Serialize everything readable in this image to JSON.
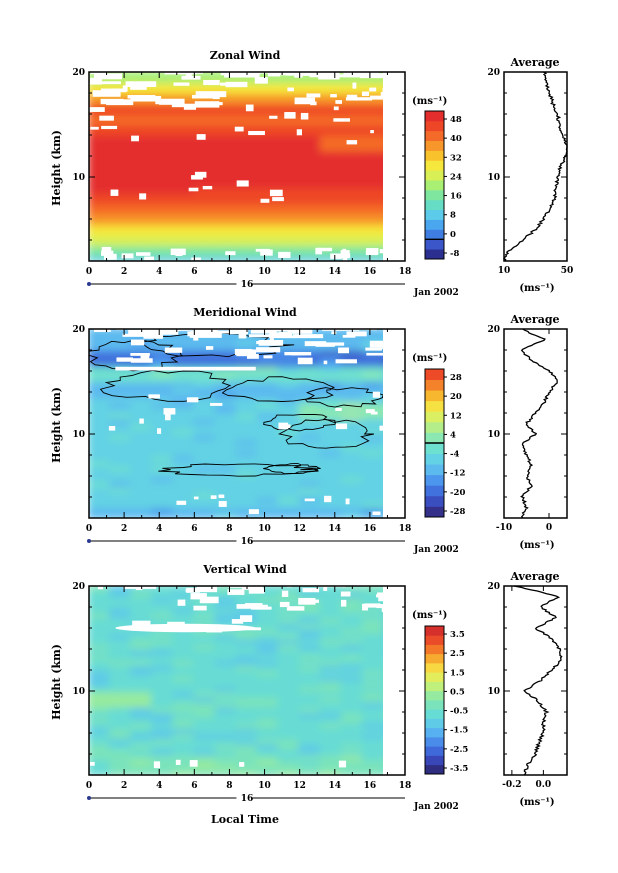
{
  "figure": {
    "date_label": "Jan 2002",
    "day_label": "16",
    "xlabel": "Local Time",
    "profile_title": "Average"
  },
  "chart_data": [
    {
      "type": "heatmap",
      "title": "Zonal Wind",
      "ylabel": "Height (km)",
      "xlim": [
        0,
        18
      ],
      "ylim": [
        2,
        20
      ],
      "xticks": [
        0,
        2,
        4,
        6,
        8,
        10,
        12,
        14,
        16,
        18
      ],
      "yticks_labeled": [
        10,
        20
      ],
      "colorbar": {
        "unit": "(ms⁻¹)",
        "levels": [
          -8,
          -4,
          0,
          4,
          8,
          12,
          16,
          20,
          24,
          28,
          32,
          36,
          40,
          44,
          48,
          52
        ],
        "tick_labels": [
          "48",
          "40",
          "32",
          "24",
          "16",
          "8",
          "0",
          "-8"
        ],
        "zero_line": 0
      },
      "profile": {
        "xlim": [
          10,
          50
        ],
        "xticks": [
          "10",
          "50"
        ],
        "xlabel": "(ms⁻¹)",
        "height_km": [
          2,
          3,
          4,
          5,
          6,
          7,
          8,
          9,
          10,
          11,
          12,
          13,
          14,
          15,
          16,
          17,
          18,
          19,
          20
        ],
        "mean": [
          10,
          13,
          22,
          30,
          35,
          39,
          42,
          43,
          44,
          46,
          49,
          50,
          47,
          45,
          44,
          41,
          39,
          37,
          36
        ]
      }
    },
    {
      "type": "heatmap",
      "title": "Meridional Wind",
      "ylabel": "Height (km)",
      "xlim": [
        0,
        18
      ],
      "ylim": [
        2,
        20
      ],
      "xticks": [
        0,
        2,
        4,
        6,
        8,
        10,
        12,
        14,
        16,
        18
      ],
      "yticks_labeled": [
        10,
        20
      ],
      "colorbar": {
        "unit": "(ms⁻¹)",
        "levels": [
          -28,
          -24,
          -20,
          -16,
          -12,
          -8,
          -4,
          0,
          4,
          8,
          12,
          16,
          20,
          24,
          28
        ],
        "tick_labels": [
          "28",
          "20",
          "12",
          "4",
          "-4",
          "-12",
          "-20",
          "-28"
        ],
        "zero_line": 0
      },
      "profile": {
        "xlim": [
          -10,
          4
        ],
        "xticks": [
          "-10",
          "0"
        ],
        "xlabel": "(ms⁻¹)",
        "height_km": [
          2,
          3,
          4,
          5,
          6,
          7,
          8,
          9,
          10,
          11,
          12,
          13,
          14,
          15,
          16,
          17,
          18,
          19,
          20
        ],
        "mean": [
          -6,
          -5,
          -6,
          -4,
          -5,
          -4,
          -5,
          -6,
          -3,
          -5,
          -3,
          -1,
          0,
          2,
          0,
          -4,
          -6,
          -1,
          -6
        ]
      }
    },
    {
      "type": "heatmap",
      "title": "Vertical Wind",
      "ylabel": "Height (km)",
      "xlim": [
        0,
        18
      ],
      "ylim": [
        2,
        20
      ],
      "xticks": [
        0,
        2,
        4,
        6,
        8,
        10,
        12,
        14,
        16,
        18
      ],
      "yticks_labeled": [
        10,
        20
      ],
      "colorbar": {
        "unit": "(ms⁻¹)",
        "levels": [
          -4,
          -3.5,
          -3,
          -2.5,
          -2,
          -1.5,
          -1,
          -0.5,
          0,
          0.5,
          1,
          1.5,
          2,
          2.5,
          3,
          3.5,
          4
        ],
        "tick_labels": [
          "3.5",
          "2.5",
          "1.5",
          "0.5",
          "-0.5",
          "-1.5",
          "-2.5",
          "-3.5"
        ],
        "zero_line": null
      },
      "profile": {
        "xlim": [
          -0.25,
          0.15
        ],
        "xticks": [
          "-0.2",
          "0.0"
        ],
        "xlabel": "(ms⁻¹)",
        "height_km": [
          2,
          3,
          4,
          5,
          6,
          7,
          8,
          9,
          10,
          11,
          12,
          13,
          14,
          15,
          16,
          17,
          18,
          19,
          20
        ],
        "mean": [
          -0.12,
          -0.1,
          -0.05,
          -0.03,
          0.0,
          0.0,
          0.02,
          -0.03,
          -0.12,
          -0.02,
          0.05,
          0.12,
          0.1,
          0.05,
          -0.05,
          0.08,
          -0.02,
          0.1,
          -0.18
        ]
      }
    }
  ],
  "colors": {
    "zonal_scale": [
      "#2b2f8f",
      "#3a56c8",
      "#3f7de0",
      "#4aa6ee",
      "#5ccbe9",
      "#66dcc4",
      "#7fe6a0",
      "#a8ef74",
      "#d8f056",
      "#f5e73b",
      "#f8c22c",
      "#f7962a",
      "#f46a28",
      "#ee4727",
      "#e42e2e"
    ],
    "meridional_scale": [
      "#35308a",
      "#3a4ec0",
      "#4171dd",
      "#4c96ee",
      "#5cbaef",
      "#63d2e4",
      "#6ee0cf",
      "#8be8b2",
      "#b3ee8a",
      "#daf062",
      "#f6e142",
      "#f7b72e",
      "#f4822a",
      "#ed4a28"
    ],
    "vertical_scale": [
      "#2e2d80",
      "#3846b8",
      "#3f68d8",
      "#4a8ce9",
      "#57b0ef",
      "#5fcbe6",
      "#67dcd4",
      "#7ae3bc",
      "#96ea9f",
      "#bff07c",
      "#e3ed5c",
      "#f7d843",
      "#f7aa30",
      "#f3782a",
      "#ea4b28",
      "#d6302d"
    ]
  }
}
